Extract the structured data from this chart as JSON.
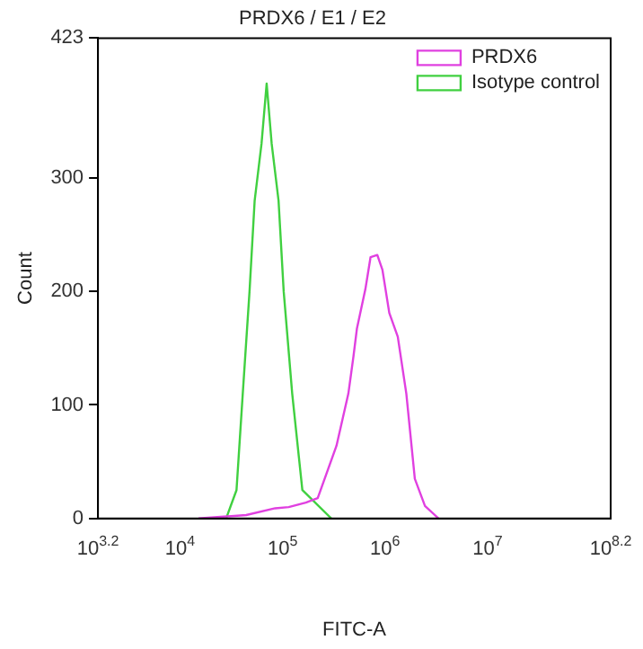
{
  "chart_data": {
    "type": "line",
    "title": "PRDX6 / E1 / E2",
    "xlabel": "FITC-A",
    "ylabel": "Count",
    "log": "x",
    "series": [
      {
        "name": "PRDX6",
        "color": "#e040e0",
        "x": [
          15140,
          44160,
          84720,
          114800,
          168700,
          220300,
          335700,
          438500,
          492000,
          530900,
          642700,
          721100,
          839500,
          941900,
          1099000,
          1330000,
          1611000,
          1950000,
          2449000,
          3327000
        ],
        "values": [
          0,
          3,
          9,
          10,
          14,
          18,
          64,
          110,
          143,
          167,
          202,
          230,
          232,
          219,
          181,
          160,
          110,
          35,
          11,
          0
        ]
      },
      {
        "name": "Isotype control",
        "color": "#40d040",
        "x": [
          28180,
          35560,
          40930,
          47640,
          53460,
          62370,
          69980,
          78340,
          91410,
          102600,
          124200,
          156000,
          299200
        ],
        "values": [
          0,
          25,
          110,
          200,
          280,
          330,
          383,
          330,
          280,
          200,
          110,
          25,
          0
        ]
      }
    ],
    "xlim": [
      1584.893,
      158489319
    ],
    "xticks": [
      {
        "value": 1584.893,
        "label": "10$^{3.2}$"
      },
      {
        "value": 10000,
        "label": "10$^{4}$"
      },
      {
        "value": 100000,
        "label": "10$^{5}$"
      },
      {
        "value": 1000000,
        "label": "10$^{6}$"
      },
      {
        "value": 10000000,
        "label": "10$^{7}$"
      },
      {
        "value": 158489319,
        "label": "10$^{8.2}$"
      }
    ],
    "ylim": [
      0,
      423
    ],
    "yticks": [
      0,
      100,
      200,
      300,
      423
    ],
    "grid": false,
    "legend": "top right",
    "marker": "none",
    "line_style": "solid"
  }
}
